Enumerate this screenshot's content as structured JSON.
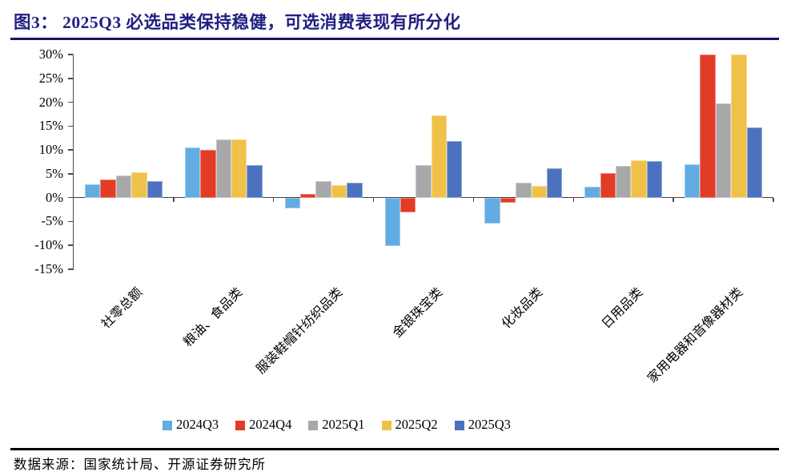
{
  "header": {
    "title": "图3：  2025Q3 必选品类保持稳健，可选消费表现有所分化"
  },
  "footer": {
    "source": "数据来源：国家统计局、开源证券研究所"
  },
  "colors": {
    "title": "#1f1f82",
    "title_rule": "#15156a",
    "footer_rule": "#000000",
    "axis": "#4d4d4d"
  },
  "chart_data": {
    "type": "bar",
    "title": "2025Q3 必选品类保持稳健，可选消费表现有所分化",
    "categories": [
      "社零总额",
      "粮油、食品类",
      "服装鞋帽针纺织品类",
      "金银珠宝类",
      "化妆品类",
      "日用品类",
      "家用电器和音像器材类"
    ],
    "series": [
      {
        "name": "2024Q3",
        "color": "#62ACE2",
        "values": [
          2.8,
          10.5,
          -2.3,
          -10.2,
          -5.5,
          2.3,
          7.0
        ]
      },
      {
        "name": "2024Q4",
        "color": "#E23B26",
        "values": [
          3.8,
          10.1,
          0.7,
          -3.1,
          -1.1,
          5.2,
          30.0
        ]
      },
      {
        "name": "2025Q1",
        "color": "#A8A8A8",
        "values": [
          4.6,
          12.2,
          3.4,
          6.9,
          3.2,
          6.7,
          19.7
        ]
      },
      {
        "name": "2025Q2",
        "color": "#F0C148",
        "values": [
          5.4,
          12.2,
          2.7,
          17.2,
          2.5,
          7.8,
          30.0
        ]
      },
      {
        "name": "2025Q3",
        "color": "#4C72BF",
        "values": [
          3.4,
          6.8,
          3.2,
          11.8,
          6.2,
          7.6,
          14.8
        ]
      }
    ],
    "ylim": [
      -15,
      30
    ],
    "y_ticks": [
      {
        "label": "30%",
        "value": 30
      },
      {
        "label": "25%",
        "value": 25
      },
      {
        "label": "20%",
        "value": 20
      },
      {
        "label": "15%",
        "value": 15
      },
      {
        "label": "10%",
        "value": 10
      },
      {
        "label": "5%",
        "value": 5
      },
      {
        "label": "0%",
        "value": 0
      },
      {
        "label": "-5%",
        "value": -5
      },
      {
        "label": "-10%",
        "value": -10
      },
      {
        "label": "-15%",
        "value": -15
      }
    ],
    "grid": false,
    "legend_position": "bottom"
  }
}
